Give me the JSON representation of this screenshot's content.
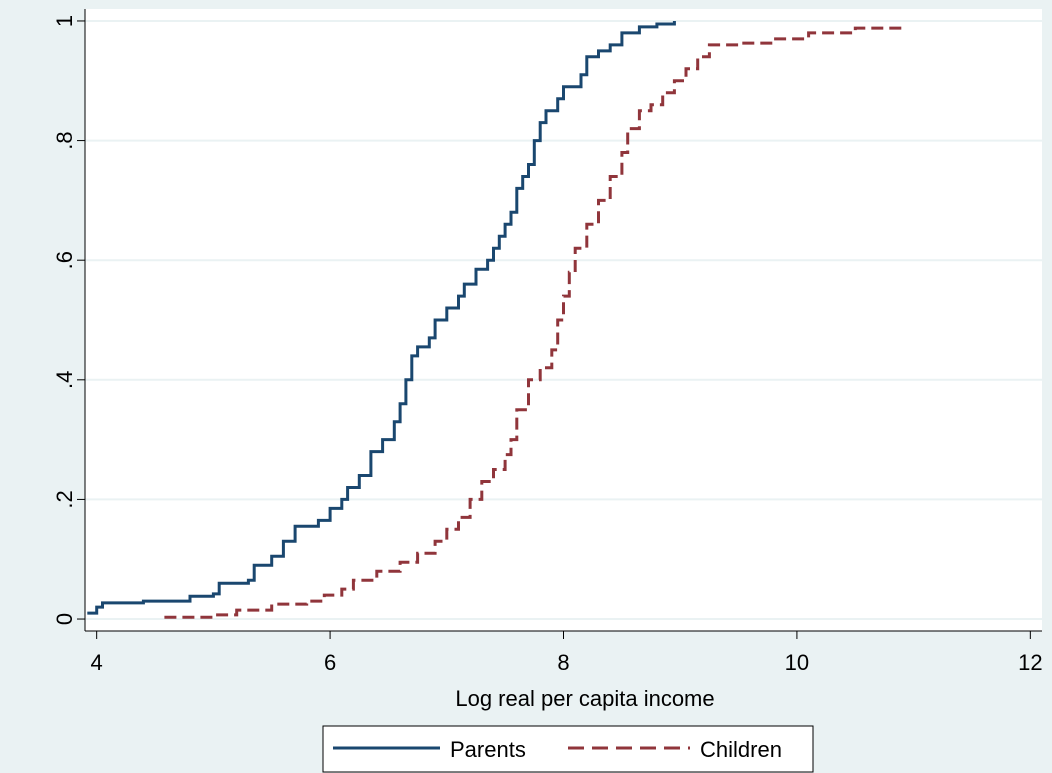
{
  "chart_data": {
    "type": "line",
    "title": "",
    "xlabel": "Log real per capita income",
    "ylabel": "",
    "xlim": [
      3.9,
      12.1
    ],
    "ylim": [
      -0.02,
      1.02
    ],
    "x_ticks": [
      4,
      6,
      8,
      10,
      12
    ],
    "x_tick_labels": [
      "4",
      "6",
      "8",
      "10",
      "12"
    ],
    "y_ticks": [
      0,
      0.2,
      0.4,
      0.6,
      0.8,
      1
    ],
    "y_tick_labels": [
      "0",
      ".2",
      ".4",
      ".6",
      ".8",
      "1"
    ],
    "grid": "horizontal",
    "legend_position": "bottom",
    "colors": {
      "background": "#eaf2f3",
      "plot": "#ffffff",
      "Parents": "#1a476f",
      "Children": "#90353b",
      "grid": "#eaf2f3"
    },
    "series": [
      {
        "name": "Parents",
        "style": "solid",
        "points": [
          [
            3.92,
            0.01
          ],
          [
            4.0,
            0.02
          ],
          [
            4.05,
            0.027
          ],
          [
            4.4,
            0.03
          ],
          [
            4.8,
            0.038
          ],
          [
            5.0,
            0.042
          ],
          [
            5.05,
            0.06
          ],
          [
            5.3,
            0.065
          ],
          [
            5.35,
            0.09
          ],
          [
            5.5,
            0.105
          ],
          [
            5.6,
            0.13
          ],
          [
            5.7,
            0.155
          ],
          [
            5.9,
            0.165
          ],
          [
            6.0,
            0.185
          ],
          [
            6.1,
            0.2
          ],
          [
            6.15,
            0.22
          ],
          [
            6.25,
            0.24
          ],
          [
            6.35,
            0.28
          ],
          [
            6.45,
            0.3
          ],
          [
            6.55,
            0.33
          ],
          [
            6.6,
            0.36
          ],
          [
            6.65,
            0.4
          ],
          [
            6.7,
            0.44
          ],
          [
            6.75,
            0.455
          ],
          [
            6.85,
            0.47
          ],
          [
            6.9,
            0.5
          ],
          [
            7.0,
            0.52
          ],
          [
            7.1,
            0.54
          ],
          [
            7.15,
            0.56
          ],
          [
            7.25,
            0.585
          ],
          [
            7.35,
            0.6
          ],
          [
            7.4,
            0.62
          ],
          [
            7.45,
            0.64
          ],
          [
            7.5,
            0.66
          ],
          [
            7.55,
            0.68
          ],
          [
            7.6,
            0.72
          ],
          [
            7.65,
            0.74
          ],
          [
            7.7,
            0.76
          ],
          [
            7.75,
            0.8
          ],
          [
            7.8,
            0.83
          ],
          [
            7.85,
            0.85
          ],
          [
            7.95,
            0.87
          ],
          [
            8.0,
            0.89
          ],
          [
            8.15,
            0.91
          ],
          [
            8.2,
            0.94
          ],
          [
            8.3,
            0.95
          ],
          [
            8.4,
            0.96
          ],
          [
            8.5,
            0.98
          ],
          [
            8.65,
            0.99
          ],
          [
            8.8,
            0.995
          ],
          [
            8.95,
            1.0
          ]
        ]
      },
      {
        "name": "Children",
        "style": "dashed",
        "points": [
          [
            4.58,
            0.003
          ],
          [
            5.0,
            0.007
          ],
          [
            5.2,
            0.015
          ],
          [
            5.5,
            0.025
          ],
          [
            5.8,
            0.03
          ],
          [
            5.95,
            0.04
          ],
          [
            6.1,
            0.05
          ],
          [
            6.2,
            0.065
          ],
          [
            6.4,
            0.08
          ],
          [
            6.6,
            0.095
          ],
          [
            6.75,
            0.11
          ],
          [
            6.9,
            0.13
          ],
          [
            7.0,
            0.15
          ],
          [
            7.1,
            0.17
          ],
          [
            7.2,
            0.2
          ],
          [
            7.3,
            0.23
          ],
          [
            7.4,
            0.25
          ],
          [
            7.5,
            0.275
          ],
          [
            7.55,
            0.3
          ],
          [
            7.6,
            0.35
          ],
          [
            7.7,
            0.4
          ],
          [
            7.8,
            0.42
          ],
          [
            7.9,
            0.45
          ],
          [
            7.95,
            0.5
          ],
          [
            8.0,
            0.54
          ],
          [
            8.05,
            0.58
          ],
          [
            8.1,
            0.62
          ],
          [
            8.2,
            0.66
          ],
          [
            8.3,
            0.7
          ],
          [
            8.4,
            0.74
          ],
          [
            8.5,
            0.78
          ],
          [
            8.55,
            0.82
          ],
          [
            8.65,
            0.85
          ],
          [
            8.75,
            0.86
          ],
          [
            8.85,
            0.88
          ],
          [
            8.95,
            0.9
          ],
          [
            9.05,
            0.92
          ],
          [
            9.15,
            0.94
          ],
          [
            9.25,
            0.96
          ],
          [
            9.5,
            0.963
          ],
          [
            9.8,
            0.97
          ],
          [
            10.1,
            0.98
          ],
          [
            10.5,
            0.988
          ],
          [
            10.9,
            0.997
          ]
        ]
      }
    ]
  }
}
